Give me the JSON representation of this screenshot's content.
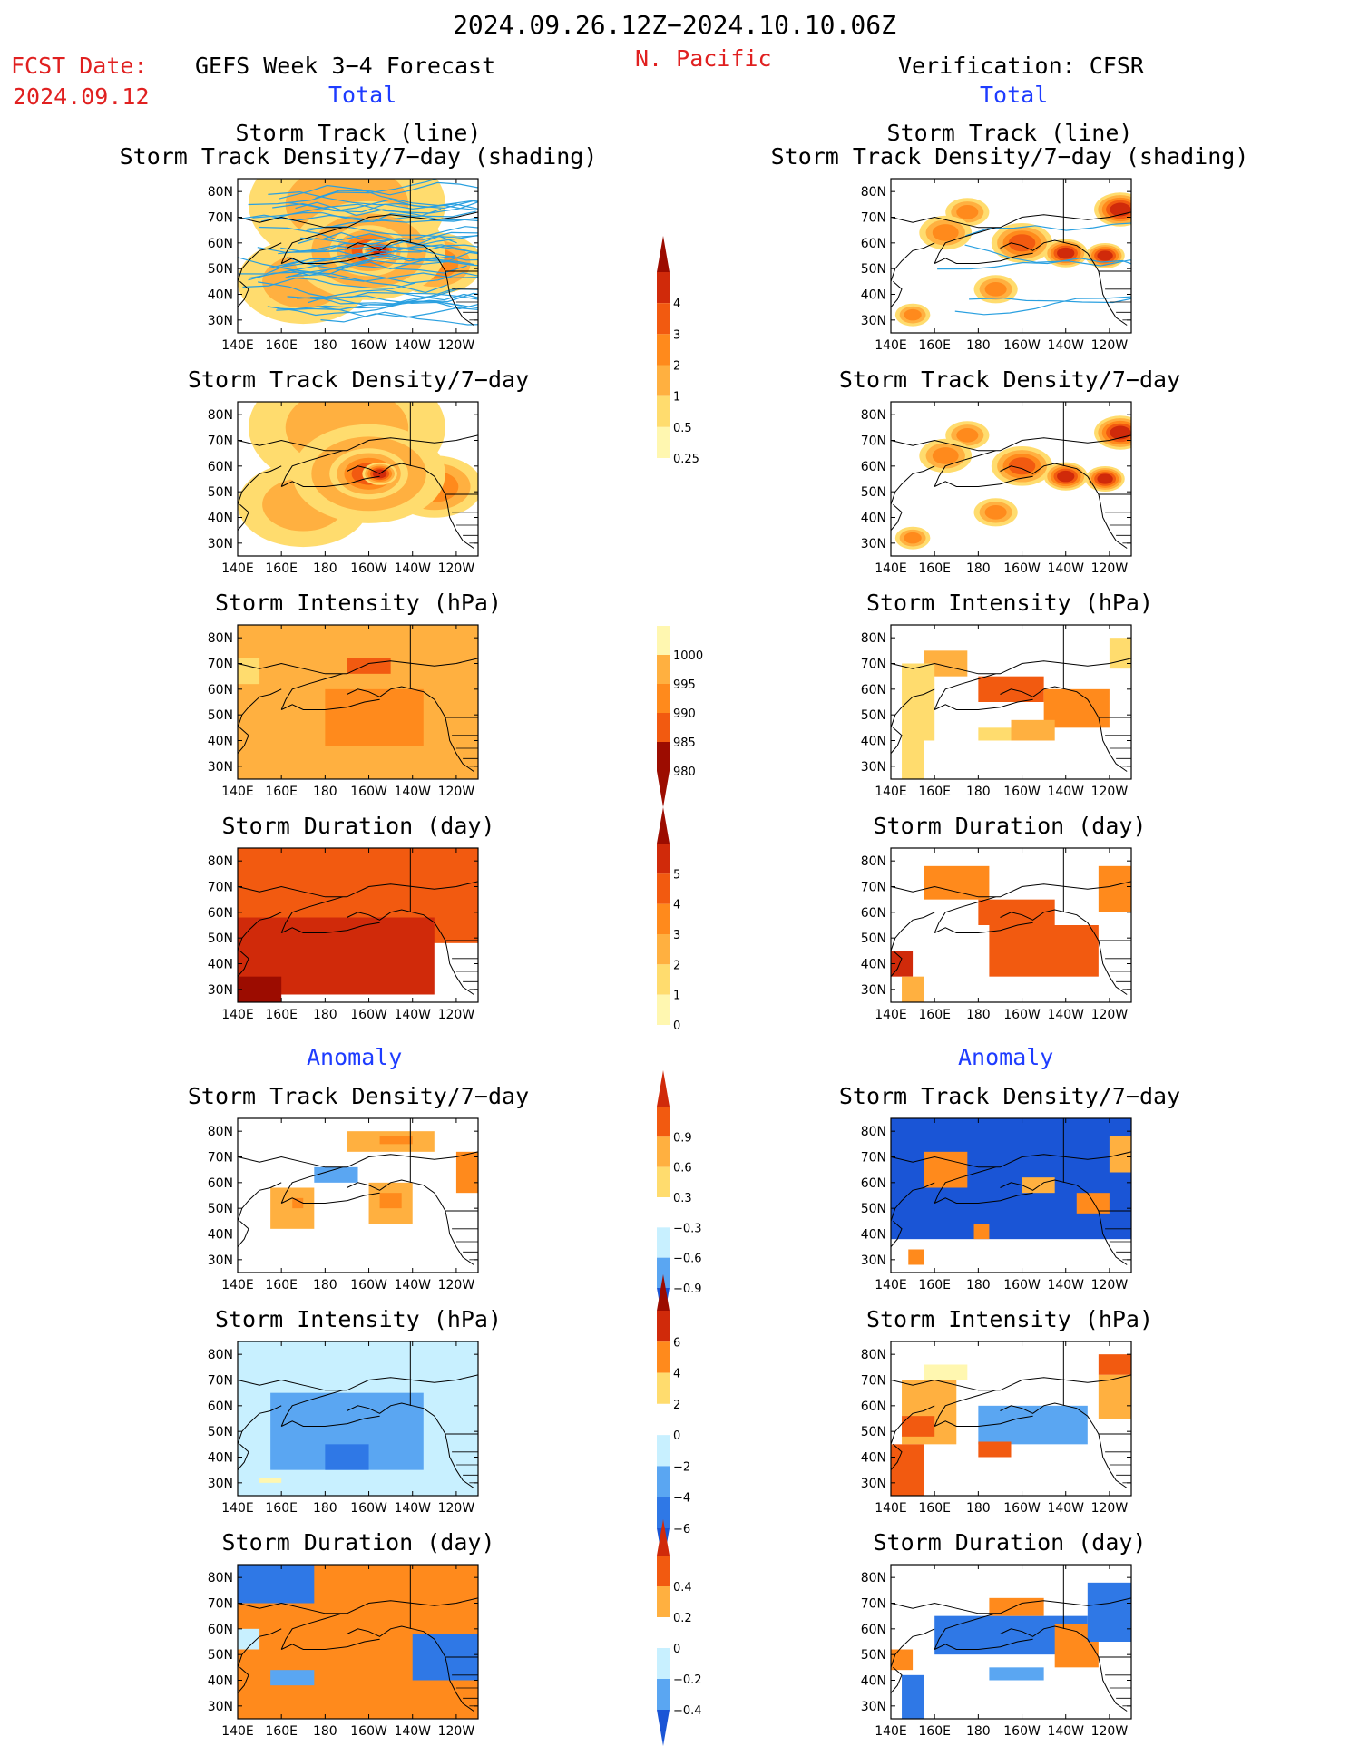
{
  "header": {
    "date_range": "2024.09.26.12Z−2024.10.10.06Z",
    "region": "N. Pacific",
    "fcst_label": "FCST Date:",
    "fcst_date": "2024.09.12",
    "left_heading": "GEFS Week 3−4 Forecast",
    "right_heading": "Verification: CFSR",
    "total_label": "Total",
    "anomaly_label": "Anomaly"
  },
  "panel_titles": {
    "track_line": "Storm Track (line)",
    "track_shading": "Storm Track Density/7−day (shading)",
    "density": "Storm Track Density/7−day",
    "intensity": "Storm Intensity (hPa)",
    "duration": "Storm Duration (day)"
  },
  "axes": {
    "lat_ticks": [
      "80N",
      "70N",
      "60N",
      "50N",
      "40N",
      "30N"
    ],
    "lon_ticks": [
      "140E",
      "160E",
      "180",
      "160W",
      "140W",
      "120W"
    ]
  },
  "colorbars": {
    "density_total": [
      "4",
      "3",
      "2",
      "1",
      "0.5",
      "0.25"
    ],
    "intensity_total": [
      "1000",
      "995",
      "990",
      "985",
      "980"
    ],
    "duration_total": [
      "5",
      "4",
      "3",
      "2",
      "1",
      "0"
    ],
    "density_anom": [
      "0.9",
      "0.6",
      "0.3",
      "−0.3",
      "−0.6",
      "−0.9"
    ],
    "intensity_anom": [
      "6",
      "4",
      "2",
      "0",
      "−2",
      "−4",
      "−6"
    ],
    "duration_anom": [
      "0.4",
      "0.2",
      "0",
      "−0.2",
      "−0.4"
    ]
  },
  "colors": {
    "warm": [
      "#fff7b0",
      "#ffdc6e",
      "#ffb040",
      "#ff8a1c",
      "#f25a10",
      "#d02a0a",
      "#9c0c00"
    ],
    "cool": [
      "#ffffff",
      "#c8f0ff",
      "#8ccff5",
      "#5aa6f2",
      "#2f78e6",
      "#1a55d6"
    ],
    "track_line": "#2aa0e0"
  },
  "chart_data": [
    {
      "type": "heatmap",
      "title": "Storm Track (line) / Storm Track Density/7−day (shading)",
      "source": "GEFS Week 3−4 Forecast",
      "section": "Total",
      "cmap": "warm",
      "levels": [
        0.25,
        0.5,
        1,
        2,
        3,
        4
      ],
      "x": "longitude 140E–110W",
      "y": "latitude 25N–85N",
      "blobs": [
        {
          "lon": 200,
          "lat": 57,
          "r": 35,
          "v": 1.6
        },
        {
          "lon": 200,
          "lat": 57,
          "r": 18,
          "v": 2.6
        },
        {
          "lon": 205,
          "lat": 57,
          "r": 8,
          "v": 3.6
        },
        {
          "lon": 190,
          "lat": 75,
          "r": 45,
          "v": 0.9
        },
        {
          "lon": 170,
          "lat": 45,
          "r": 30,
          "v": 0.8
        },
        {
          "lon": 230,
          "lat": 52,
          "r": 22,
          "v": 1.2
        }
      ],
      "tracks": "ensemble storm tracks, dense west-to-east across 40N–80N"
    },
    {
      "type": "heatmap",
      "title": "Storm Track (line) / Storm Track Density/7−day (shading)",
      "source": "Verification: CFSR",
      "section": "Total",
      "cmap": "warm",
      "levels": [
        0.25,
        0.5,
        1,
        2,
        3,
        4
      ],
      "blobs": [
        {
          "lon": 165,
          "lat": 64,
          "r": 12,
          "v": 1.8
        },
        {
          "lon": 200,
          "lat": 60,
          "r": 14,
          "v": 2.2
        },
        {
          "lon": 220,
          "lat": 56,
          "r": 10,
          "v": 3.4
        },
        {
          "lon": 238,
          "lat": 55,
          "r": 9,
          "v": 3.2
        },
        {
          "lon": 188,
          "lat": 42,
          "r": 10,
          "v": 1.5
        },
        {
          "lon": 150,
          "lat": 32,
          "r": 8,
          "v": 1.6
        },
        {
          "lon": 245,
          "lat": 73,
          "r": 12,
          "v": 3.0
        },
        {
          "lon": 175,
          "lat": 72,
          "r": 10,
          "v": 1.2
        }
      ],
      "tracks": "few storm tracks along 50N–60N"
    },
    {
      "type": "heatmap",
      "title": "Storm Track Density/7−day",
      "source": "GEFS Week 3−4 Forecast",
      "section": "Total",
      "cmap": "warm",
      "levels": [
        0.25,
        0.5,
        1,
        2,
        3,
        4
      ],
      "blobs": [
        {
          "lon": 200,
          "lat": 57,
          "r": 35,
          "v": 1.6
        },
        {
          "lon": 200,
          "lat": 57,
          "r": 18,
          "v": 2.6
        },
        {
          "lon": 205,
          "lat": 57,
          "r": 8,
          "v": 3.6
        },
        {
          "lon": 190,
          "lat": 75,
          "r": 45,
          "v": 0.9
        },
        {
          "lon": 170,
          "lat": 45,
          "r": 30,
          "v": 0.8
        },
        {
          "lon": 230,
          "lat": 52,
          "r": 22,
          "v": 1.2
        }
      ]
    },
    {
      "type": "heatmap",
      "title": "Storm Track Density/7−day",
      "source": "Verification: CFSR",
      "section": "Total",
      "cmap": "warm",
      "levels": [
        0.25,
        0.5,
        1,
        2,
        3,
        4
      ],
      "blobs": [
        {
          "lon": 165,
          "lat": 64,
          "r": 12,
          "v": 1.8
        },
        {
          "lon": 200,
          "lat": 60,
          "r": 14,
          "v": 2.2
        },
        {
          "lon": 220,
          "lat": 56,
          "r": 10,
          "v": 3.4
        },
        {
          "lon": 238,
          "lat": 55,
          "r": 9,
          "v": 3.2
        },
        {
          "lon": 188,
          "lat": 42,
          "r": 10,
          "v": 1.5
        },
        {
          "lon": 150,
          "lat": 32,
          "r": 8,
          "v": 1.6
        },
        {
          "lon": 245,
          "lat": 73,
          "r": 12,
          "v": 3.0
        },
        {
          "lon": 175,
          "lat": 72,
          "r": 10,
          "v": 1.2
        }
      ]
    },
    {
      "type": "heatmap",
      "title": "Storm Intensity (hPa)",
      "source": "GEFS Week 3−4 Forecast",
      "section": "Total",
      "cmap": "warm",
      "levels": [
        980,
        985,
        990,
        995,
        1000
      ],
      "reverse": true,
      "blocks": [
        {
          "lon": [
            140,
            250
          ],
          "lat": [
            25,
            85
          ],
          "v": 992
        },
        {
          "lon": [
            180,
            225
          ],
          "lat": [
            38,
            60
          ],
          "v": 987
        },
        {
          "lon": [
            190,
            210
          ],
          "lat": [
            66,
            72
          ],
          "v": 985
        },
        {
          "lon": [
            140,
            150
          ],
          "lat": [
            62,
            72
          ],
          "v": 999
        }
      ]
    },
    {
      "type": "heatmap",
      "title": "Storm Intensity (hPa)",
      "source": "Verification: CFSR",
      "section": "Total",
      "cmap": "warm",
      "levels": [
        980,
        985,
        990,
        995,
        1000
      ],
      "reverse": true,
      "blocks": [
        {
          "lon": [
            155,
            175
          ],
          "lat": [
            65,
            75
          ],
          "v": 992
        },
        {
          "lon": [
            145,
            160
          ],
          "lat": [
            40,
            70
          ],
          "v": 998
        },
        {
          "lon": [
            180,
            210
          ],
          "lat": [
            55,
            65
          ],
          "v": 983
        },
        {
          "lon": [
            210,
            240
          ],
          "lat": [
            45,
            60
          ],
          "v": 987
        },
        {
          "lon": [
            180,
            195
          ],
          "lat": [
            40,
            45
          ],
          "v": 998
        },
        {
          "lon": [
            195,
            215
          ],
          "lat": [
            40,
            48
          ],
          "v": 991
        },
        {
          "lon": [
            240,
            250
          ],
          "lat": [
            68,
            80
          ],
          "v": 999
        },
        {
          "lon": [
            145,
            155
          ],
          "lat": [
            25,
            40
          ],
          "v": 998
        }
      ]
    },
    {
      "type": "heatmap",
      "title": "Storm Duration (day)",
      "source": "GEFS Week 3−4 Forecast",
      "section": "Total",
      "cmap": "warm",
      "levels": [
        0,
        1,
        2,
        3,
        4,
        5
      ],
      "blocks": [
        {
          "lon": [
            140,
            250
          ],
          "lat": [
            48,
            85
          ],
          "v": 3.5
        },
        {
          "lon": [
            140,
            230
          ],
          "lat": [
            28,
            58
          ],
          "v": 4.4
        },
        {
          "lon": [
            140,
            160
          ],
          "lat": [
            25,
            35
          ],
          "v": 5.2
        }
      ]
    },
    {
      "type": "heatmap",
      "title": "Storm Duration (day)",
      "source": "Verification: CFSR",
      "section": "Total",
      "cmap": "warm",
      "levels": [
        0,
        1,
        2,
        3,
        4,
        5
      ],
      "blocks": [
        {
          "lon": [
            155,
            185
          ],
          "lat": [
            65,
            78
          ],
          "v": 2.5
        },
        {
          "lon": [
            180,
            215
          ],
          "lat": [
            55,
            65
          ],
          "v": 3.5
        },
        {
          "lon": [
            185,
            235
          ],
          "lat": [
            35,
            55
          ],
          "v": 3.5
        },
        {
          "lon": [
            140,
            150
          ],
          "lat": [
            35,
            45
          ],
          "v": 4.3
        },
        {
          "lon": [
            145,
            155
          ],
          "lat": [
            25,
            35
          ],
          "v": 1.3
        },
        {
          "lon": [
            235,
            250
          ],
          "lat": [
            60,
            78
          ],
          "v": 2.5
        }
      ]
    },
    {
      "type": "heatmap",
      "title": "Storm Track Density/7−day",
      "source": "GEFS Week 3−4 Forecast",
      "section": "Anomaly",
      "cmap": "diverging",
      "levels": [
        -0.9,
        -0.6,
        -0.3,
        0.3,
        0.6,
        0.9
      ],
      "blocks": [
        {
          "lon": [
            190,
            230
          ],
          "lat": [
            72,
            80
          ],
          "v": 0.4
        },
        {
          "lon": [
            205,
            220
          ],
          "lat": [
            75,
            78
          ],
          "v": 0.7
        },
        {
          "lon": [
            155,
            175
          ],
          "lat": [
            42,
            58
          ],
          "v": 0.4
        },
        {
          "lon": [
            165,
            170
          ],
          "lat": [
            50,
            54
          ],
          "v": 0.7
        },
        {
          "lon": [
            200,
            220
          ],
          "lat": [
            44,
            60
          ],
          "v": 0.4
        },
        {
          "lon": [
            205,
            215
          ],
          "lat": [
            50,
            56
          ],
          "v": 0.7
        },
        {
          "lon": [
            175,
            195
          ],
          "lat": [
            60,
            66
          ],
          "v": -0.4
        },
        {
          "lon": [
            240,
            250
          ],
          "lat": [
            56,
            72
          ],
          "v": 0.7
        }
      ]
    },
    {
      "type": "heatmap",
      "title": "Storm Track Density/7−day",
      "source": "Verification: CFSR",
      "section": "Anomaly",
      "cmap": "diverging",
      "levels": [
        -0.9,
        -0.6,
        -0.3,
        0.3,
        0.6,
        0.9
      ],
      "blocks": [
        {
          "lon": [
            140,
            250
          ],
          "lat": [
            38,
            85
          ],
          "v": -1.0
        },
        {
          "lon": [
            155,
            175
          ],
          "lat": [
            58,
            72
          ],
          "v": 0.7
        },
        {
          "lon": [
            225,
            240
          ],
          "lat": [
            48,
            56
          ],
          "v": 0.7
        },
        {
          "lon": [
            200,
            215
          ],
          "lat": [
            56,
            62
          ],
          "v": 0.5
        },
        {
          "lon": [
            178,
            185
          ],
          "lat": [
            38,
            44
          ],
          "v": 0.7
        },
        {
          "lon": [
            148,
            155
          ],
          "lat": [
            28,
            34
          ],
          "v": 0.7
        },
        {
          "lon": [
            240,
            250
          ],
          "lat": [
            64,
            78
          ],
          "v": 0.4
        }
      ]
    },
    {
      "type": "heatmap",
      "title": "Storm Intensity (hPa)",
      "source": "GEFS Week 3−4 Forecast",
      "section": "Anomaly",
      "cmap": "diverging",
      "levels": [
        -6,
        -4,
        -2,
        0,
        2,
        4,
        6
      ],
      "blocks": [
        {
          "lon": [
            140,
            250
          ],
          "lat": [
            25,
            85
          ],
          "v": -1
        },
        {
          "lon": [
            155,
            225
          ],
          "lat": [
            35,
            65
          ],
          "v": -3
        },
        {
          "lon": [
            180,
            200
          ],
          "lat": [
            35,
            45
          ],
          "v": -4.5
        },
        {
          "lon": [
            150,
            160
          ],
          "lat": [
            30,
            32
          ],
          "v": 1
        }
      ]
    },
    {
      "type": "heatmap",
      "title": "Storm Intensity (hPa)",
      "source": "Verification: CFSR",
      "section": "Anomaly",
      "cmap": "diverging",
      "levels": [
        -6,
        -4,
        -2,
        0,
        2,
        4,
        6
      ],
      "blocks": [
        {
          "lon": [
            180,
            230
          ],
          "lat": [
            45,
            60
          ],
          "v": -3.5
        },
        {
          "lon": [
            145,
            170
          ],
          "lat": [
            45,
            70
          ],
          "v": 3
        },
        {
          "lon": [
            145,
            160
          ],
          "lat": [
            48,
            56
          ],
          "v": 7
        },
        {
          "lon": [
            140,
            155
          ],
          "lat": [
            25,
            45
          ],
          "v": 7
        },
        {
          "lon": [
            180,
            195
          ],
          "lat": [
            40,
            46
          ],
          "v": 7
        },
        {
          "lon": [
            155,
            175
          ],
          "lat": [
            70,
            76
          ],
          "v": 1
        },
        {
          "lon": [
            235,
            250
          ],
          "lat": [
            72,
            80
          ],
          "v": 7
        },
        {
          "lon": [
            235,
            250
          ],
          "lat": [
            55,
            72
          ],
          "v": 3
        }
      ]
    },
    {
      "type": "heatmap",
      "title": "Storm Duration (day)",
      "source": "GEFS Week 3−4 Forecast",
      "section": "Anomaly",
      "cmap": "diverging",
      "levels": [
        -0.4,
        -0.2,
        0,
        0.2,
        0.4
      ],
      "blocks": [
        {
          "lon": [
            140,
            250
          ],
          "lat": [
            25,
            85
          ],
          "v": 0.45
        },
        {
          "lon": [
            140,
            175
          ],
          "lat": [
            70,
            85
          ],
          "v": -0.45
        },
        {
          "lon": [
            220,
            250
          ],
          "lat": [
            40,
            58
          ],
          "v": -0.45
        },
        {
          "lon": [
            155,
            175
          ],
          "lat": [
            38,
            44
          ],
          "v": -0.3
        },
        {
          "lon": [
            140,
            150
          ],
          "lat": [
            52,
            60
          ],
          "v": -0.1
        }
      ]
    },
    {
      "type": "heatmap",
      "title": "Storm Duration (day)",
      "source": "Verification: CFSR",
      "section": "Anomaly",
      "cmap": "diverging",
      "levels": [
        -0.4,
        -0.2,
        0,
        0.2,
        0.4
      ],
      "blocks": [
        {
          "lon": [
            160,
            230
          ],
          "lat": [
            50,
            65
          ],
          "v": -0.45
        },
        {
          "lon": [
            215,
            235
          ],
          "lat": [
            45,
            62
          ],
          "v": 0.45
        },
        {
          "lon": [
            185,
            210
          ],
          "lat": [
            65,
            72
          ],
          "v": 0.45
        },
        {
          "lon": [
            230,
            250
          ],
          "lat": [
            55,
            78
          ],
          "v": -0.45
        },
        {
          "lon": [
            145,
            155
          ],
          "lat": [
            25,
            42
          ],
          "v": -0.45
        },
        {
          "lon": [
            185,
            210
          ],
          "lat": [
            40,
            45
          ],
          "v": -0.3
        },
        {
          "lon": [
            140,
            150
          ],
          "lat": [
            44,
            52
          ],
          "v": 0.45
        }
      ]
    }
  ]
}
